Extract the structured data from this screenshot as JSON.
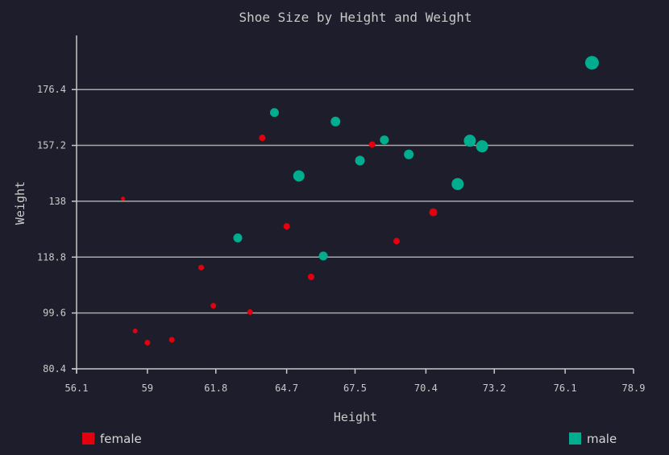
{
  "chart_data": {
    "type": "scatter",
    "title": "Shoe Size by Height and Weight",
    "xlabel": "Height",
    "ylabel": "Weight",
    "xlim": [
      56.1,
      78.9
    ],
    "ylim": [
      80.4,
      195
    ],
    "x_ticks": [
      "56.1",
      "59",
      "61.8",
      "64.7",
      "67.5",
      "70.4",
      "73.2",
      "76.1",
      "78.9"
    ],
    "x_tick_values": [
      56.1,
      59,
      61.8,
      64.7,
      67.5,
      70.4,
      73.2,
      76.1,
      78.9
    ],
    "y_ticks": [
      "80.4",
      "99.6",
      "118.8",
      "138",
      "157.2",
      "176.4"
    ],
    "y_tick_values": [
      80.4,
      99.6,
      118.8,
      138,
      157.2,
      176.4
    ],
    "grid": "horizontal",
    "legend_position": "bottom",
    "series": [
      {
        "name": "female",
        "color": "#e3000f",
        "points": [
          {
            "x": 58.0,
            "y": 138.9,
            "size": 5
          },
          {
            "x": 58.5,
            "y": 93.4,
            "size": 6
          },
          {
            "x": 59.0,
            "y": 89.4,
            "size": 7
          },
          {
            "x": 60.0,
            "y": 90.4,
            "size": 7
          },
          {
            "x": 61.2,
            "y": 115.2,
            "size": 7
          },
          {
            "x": 61.7,
            "y": 102.1,
            "size": 7
          },
          {
            "x": 63.2,
            "y": 99.9,
            "size": 7
          },
          {
            "x": 63.7,
            "y": 159.8,
            "size": 8
          },
          {
            "x": 64.7,
            "y": 129.4,
            "size": 8
          },
          {
            "x": 65.7,
            "y": 112.0,
            "size": 8
          },
          {
            "x": 68.2,
            "y": 157.5,
            "size": 8
          },
          {
            "x": 69.2,
            "y": 124.3,
            "size": 8
          },
          {
            "x": 70.7,
            "y": 134.2,
            "size": 10
          }
        ]
      },
      {
        "name": "male",
        "color": "#00ad8f",
        "points": [
          {
            "x": 62.7,
            "y": 125.4,
            "size": 11
          },
          {
            "x": 64.2,
            "y": 168.5,
            "size": 11
          },
          {
            "x": 65.2,
            "y": 146.7,
            "size": 14
          },
          {
            "x": 66.2,
            "y": 119.2,
            "size": 11
          },
          {
            "x": 66.7,
            "y": 165.4,
            "size": 12
          },
          {
            "x": 67.7,
            "y": 152.0,
            "size": 12
          },
          {
            "x": 68.7,
            "y": 159.1,
            "size": 11
          },
          {
            "x": 69.7,
            "y": 154.1,
            "size": 12
          },
          {
            "x": 71.7,
            "y": 143.9,
            "size": 15
          },
          {
            "x": 72.2,
            "y": 158.8,
            "size": 15
          },
          {
            "x": 72.7,
            "y": 156.9,
            "size": 15
          },
          {
            "x": 77.2,
            "y": 185.6,
            "size": 17
          }
        ]
      }
    ]
  }
}
